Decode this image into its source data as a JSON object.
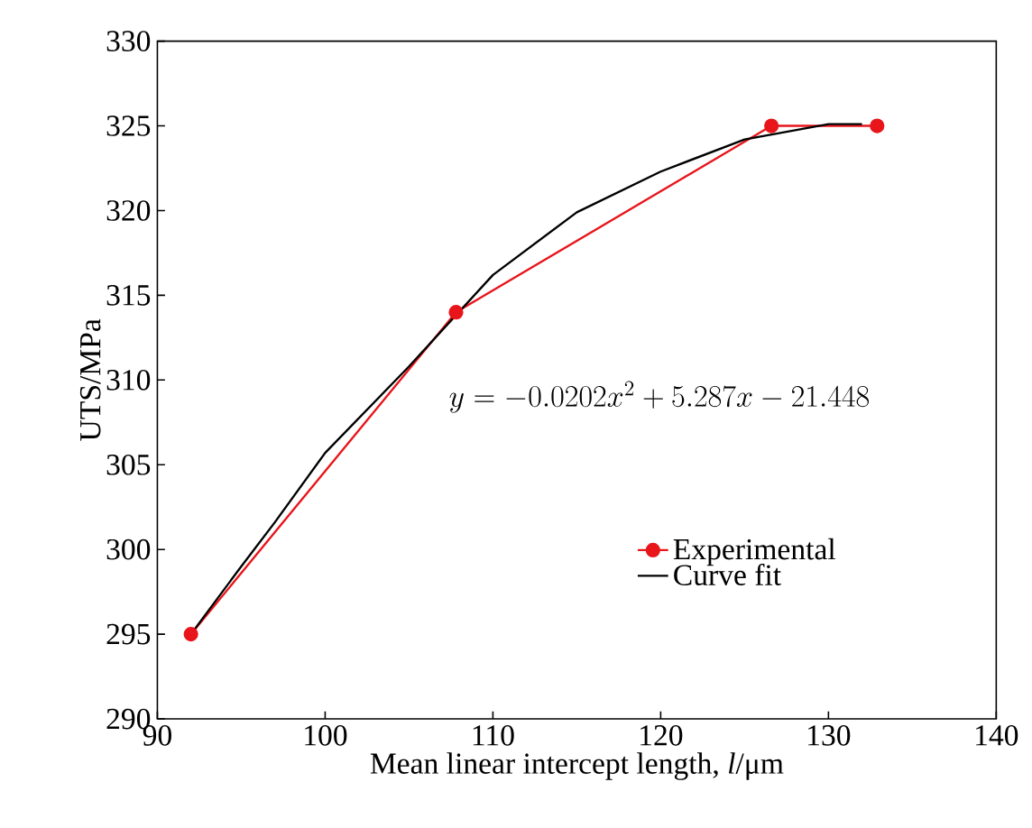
{
  "chart_data": {
    "type": "line",
    "xlabel": "Mean linear intercept length, *l*/μm",
    "ylabel": "UTS/MPa",
    "xlim": [
      90,
      140
    ],
    "xticks": [
      90,
      100,
      110,
      120,
      130,
      140
    ],
    "ylim": [
      290,
      330
    ],
    "yticks": [
      290,
      295,
      300,
      305,
      310,
      315,
      320,
      325,
      330
    ],
    "series": [
      {
        "name": "Experimental",
        "color": "#e8151b",
        "marker": "circle",
        "x": [
          92.0,
          107.8,
          126.6,
          132.9
        ],
        "values": [
          295,
          314,
          325,
          325
        ]
      },
      {
        "name": "Curve fit",
        "color": "#000000",
        "marker": "none",
        "x": [
          92,
          95,
          97,
          100,
          105,
          110,
          115,
          120,
          125,
          130,
          132
        ],
        "values": [
          295,
          299.0,
          301.6,
          305.7,
          310.8,
          316.2,
          319.9,
          322.3,
          324.2,
          325.1,
          325.1
        ]
      }
    ],
    "annotations": [
      "y=-0.0202x^{2}+5.287x-21.448"
    ],
    "legend": "bottom right",
    "grid": false
  }
}
